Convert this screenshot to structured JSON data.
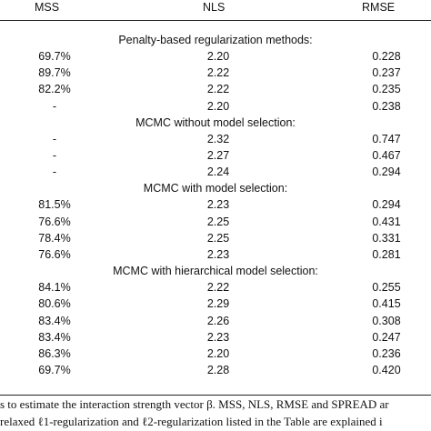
{
  "table": {
    "headers": {
      "mss": "MSS",
      "nls": "NLS",
      "rmse": "RMSE"
    },
    "sections": [
      {
        "title": "Penalty-based regularization methods:",
        "rows": [
          {
            "mss": "69.7%",
            "nls": "2.20",
            "rmse": "0.228"
          },
          {
            "mss": "89.7%",
            "nls": "2.22",
            "rmse": "0.237"
          },
          {
            "mss": "82.2%",
            "nls": "2.22",
            "rmse": "0.235"
          },
          {
            "mss": "-",
            "nls": "2.20",
            "rmse": "0.238"
          }
        ]
      },
      {
        "title": "MCMC without model selection:",
        "rows": [
          {
            "mss": "-",
            "nls": "2.32",
            "rmse": "0.747"
          },
          {
            "mss": "-",
            "nls": "2.27",
            "rmse": "0.467"
          },
          {
            "mss": "-",
            "nls": "2.24",
            "rmse": "0.294"
          }
        ]
      },
      {
        "title": "MCMC with model selection:",
        "rows": [
          {
            "mss": "81.5%",
            "nls": "2.23",
            "rmse": "0.294"
          },
          {
            "mss": "76.6%",
            "nls": "2.25",
            "rmse": "0.431"
          },
          {
            "mss": "78.4%",
            "nls": "2.25",
            "rmse": "0.331"
          },
          {
            "mss": "76.6%",
            "nls": "2.23",
            "rmse": "0.281"
          }
        ]
      },
      {
        "title": "MCMC with hierarchical model selection:",
        "rows": [
          {
            "mss": "84.1%",
            "nls": "2.22",
            "rmse": "0.255"
          },
          {
            "mss": "80.6%",
            "nls": "2.29",
            "rmse": "0.415"
          },
          {
            "mss": "83.4%",
            "nls": "2.26",
            "rmse": "0.308"
          },
          {
            "mss": "83.4%",
            "nls": "2.23",
            "rmse": "0.247"
          },
          {
            "mss": "86.3%",
            "nls": "2.20",
            "rmse": "0.236"
          },
          {
            "mss": "69.7%",
            "nls": "2.28",
            "rmse": "0.420"
          }
        ]
      }
    ]
  },
  "caption": {
    "line1": "s to estimate the interaction strength vector β. MSS, NLS, RMSE and SPREAD ar",
    "line2": "relaxed ℓ1-regularization and ℓ2-regularization listed in the Table are explained i"
  }
}
